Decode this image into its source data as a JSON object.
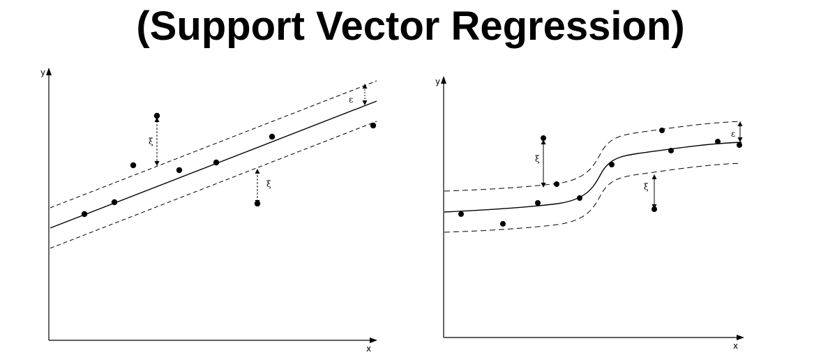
{
  "title": "(Support Vector Regression)",
  "left_panel": {
    "x_axis_label": "x",
    "y_axis_label": "y",
    "epsilon_label": "ε",
    "slack_label_upper": "ξ",
    "slack_label_lower": "ξ"
  },
  "right_panel": {
    "x_axis_label": "x",
    "y_axis_label": "y",
    "epsilon_label": "ε",
    "slack_label_upper": "ξ",
    "slack_label_lower": "ξ"
  },
  "colors": {
    "ink": "#000000",
    "background": "#ffffff"
  }
}
